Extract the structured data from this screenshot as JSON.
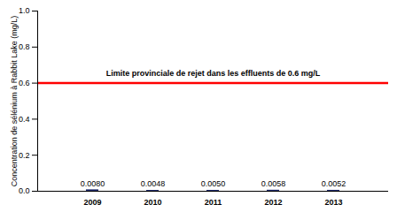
{
  "chart_data": {
    "type": "bar",
    "y_label": "Concentration de sélénium à Rabbit Lake (mg/L)",
    "categories": [
      "2009",
      "2010",
      "2011",
      "2012",
      "2013"
    ],
    "values": [
      0.008,
      0.0048,
      0.005,
      0.0058,
      0.0052
    ],
    "value_labels": [
      "0.0080",
      "0.0048",
      "0.0050",
      "0.0058",
      "0.0052"
    ],
    "data_labels": true,
    "color": "#1f2a6b",
    "ylim": [
      0,
      1
    ],
    "yticks": [
      {
        "value": 0,
        "label": "0.0"
      },
      0.2,
      0.4,
      0.6,
      0.8,
      {
        "value": 1,
        "label": "1.0"
      }
    ],
    "grid": false,
    "threshold": {
      "value": 0.6,
      "label": "Limite provinciale de rejet dans les effluents de 0.6 mg/L",
      "color": "#ff0000"
    }
  }
}
